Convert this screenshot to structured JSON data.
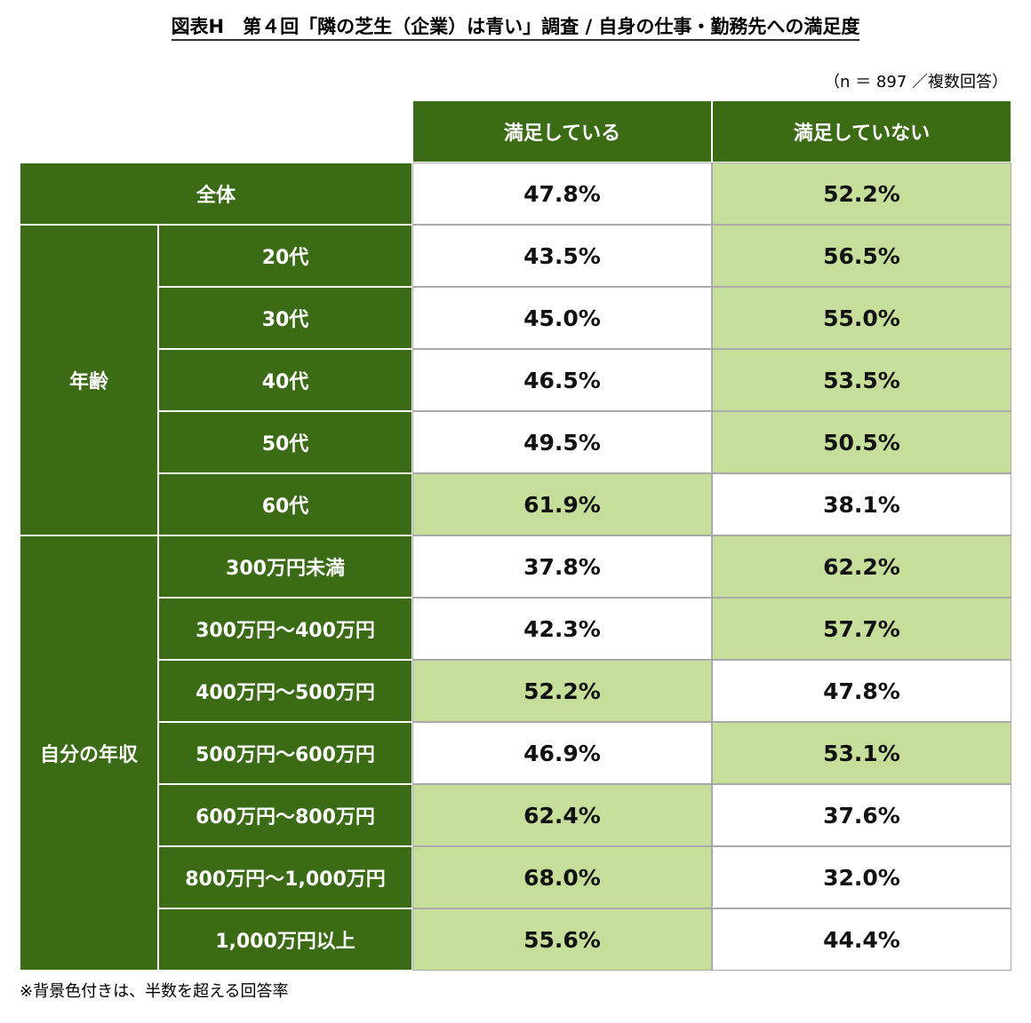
{
  "header": {
    "title": "図表H　第４回「隣の芝生（企業）は青い」調査 / 自身の仕事・勤務先への満足度",
    "note": "（n ＝ 897 ／複数回答）"
  },
  "table": {
    "colors": {
      "dark": "#3b6b14",
      "shade": "#c5de9a",
      "plain": "#ffffff"
    },
    "columns": [
      "満足している",
      "満足していない"
    ],
    "total": {
      "label": "全体",
      "values": [
        "47.8%",
        "52.2%"
      ],
      "shaded": [
        false,
        true
      ]
    },
    "groups": [
      {
        "label": "年齢",
        "rows": [
          {
            "label": "20代",
            "values": [
              "43.5%",
              "56.5%"
            ],
            "shaded": [
              false,
              true
            ]
          },
          {
            "label": "30代",
            "values": [
              "45.0%",
              "55.0%"
            ],
            "shaded": [
              false,
              true
            ]
          },
          {
            "label": "40代",
            "values": [
              "46.5%",
              "53.5%"
            ],
            "shaded": [
              false,
              true
            ]
          },
          {
            "label": "50代",
            "values": [
              "49.5%",
              "50.5%"
            ],
            "shaded": [
              false,
              true
            ]
          },
          {
            "label": "60代",
            "values": [
              "61.9%",
              "38.1%"
            ],
            "shaded": [
              true,
              false
            ]
          }
        ]
      },
      {
        "label": "自分の年収",
        "rows": [
          {
            "label": "300万円未満",
            "values": [
              "37.8%",
              "62.2%"
            ],
            "shaded": [
              false,
              true
            ]
          },
          {
            "label": "300万円～400万円",
            "values": [
              "42.3%",
              "57.7%"
            ],
            "shaded": [
              false,
              true
            ]
          },
          {
            "label": "400万円～500万円",
            "values": [
              "52.2%",
              "47.8%"
            ],
            "shaded": [
              true,
              false
            ]
          },
          {
            "label": "500万円～600万円",
            "values": [
              "46.9%",
              "53.1%"
            ],
            "shaded": [
              false,
              true
            ]
          },
          {
            "label": "600万円～800万円",
            "values": [
              "62.4%",
              "37.6%"
            ],
            "shaded": [
              true,
              false
            ]
          },
          {
            "label": "800万円～1,000万円",
            "values": [
              "68.0%",
              "32.0%"
            ],
            "shaded": [
              true,
              false
            ]
          },
          {
            "label": "1,000万円以上",
            "values": [
              "55.6%",
              "44.4%"
            ],
            "shaded": [
              true,
              false
            ]
          }
        ]
      }
    ]
  },
  "footer": {
    "note": "※背景色付きは、半数を超える回答率"
  }
}
